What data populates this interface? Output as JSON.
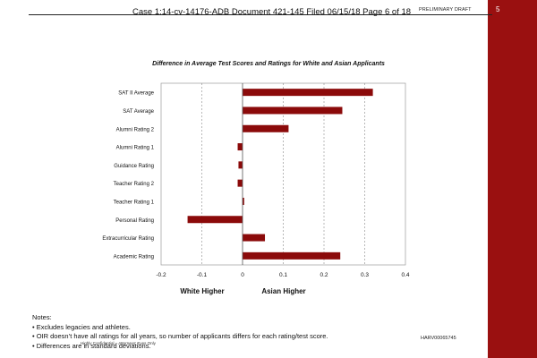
{
  "header": {
    "case_line": "Case 1:14-cv-14176-ADB   Document 421-145   Filed 06/15/18   Page 6 of 18",
    "preliminary": "PRELIMINARY DRAFT",
    "page_number": "5"
  },
  "colors": {
    "accent": "#9a1010",
    "bar": "#8b0a0a"
  },
  "chart_data": {
    "type": "bar",
    "orientation": "horizontal",
    "title": "Difference in Average Test Scores and Ratings for White and Asian Applicants",
    "categories": [
      "SAT II Average",
      "SAT Average",
      "Alumni Rating 2",
      "Alumni Rating 1",
      "Guidance Rating",
      "Teacher Rating 2",
      "Teacher Rating 1",
      "Personal Rating",
      "Extracurricular Rating",
      "Academic Rating"
    ],
    "values": [
      0.32,
      0.245,
      0.113,
      -0.012,
      -0.01,
      -0.012,
      0.004,
      -0.135,
      0.055,
      0.24
    ],
    "xlim": [
      -0.2,
      0.4
    ],
    "xticks": [
      -0.2,
      -0.1,
      0,
      0.1,
      0.2,
      0.3,
      0.4
    ],
    "xtick_labels": [
      "-0.2",
      "-0.1",
      "0",
      "0.1",
      "0.2",
      "0.3",
      "0.4"
    ],
    "grid": "vertical dashed",
    "left_label": "White Higher",
    "right_label": "Asian Higher"
  },
  "notes": {
    "heading": "Notes:",
    "items": [
      "• Excludes legacies and athletes.",
      "• OIR doesn’t have all ratings for all years, so number of applicants differs for each rating/test score.",
      "• Differences are in standard deviations."
    ],
    "overlay": "Highly Confidential – Attorneys’ Eyes Only"
  },
  "footer": {
    "bates": "HARV00065745"
  }
}
